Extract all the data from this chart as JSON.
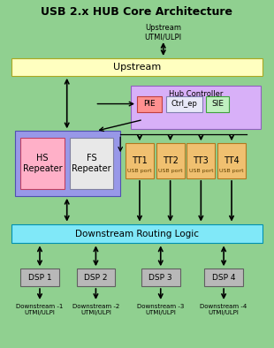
{
  "title": "USB 2.x HUB Core Architecture",
  "bg_color": "#90d090",
  "upstream_box": {
    "label": "Upstream",
    "color": "#ffffc0",
    "edgecolor": "#aaa820"
  },
  "hub_controller": {
    "label": "Hub Controller",
    "color": "#d8b0f8",
    "edgecolor": "#9060c0",
    "sub_boxes": [
      {
        "label": "PIE",
        "color": "#ff9090",
        "edgecolor": "#c04040"
      },
      {
        "label": "Ctrl_ep",
        "color": "#e8e8f8",
        "edgecolor": "#8080b0"
      },
      {
        "label": "SIE",
        "color": "#c0f0c0",
        "edgecolor": "#40a040"
      }
    ]
  },
  "repeater_box": {
    "color": "#9898e8",
    "edgecolor": "#5050b0",
    "sub_boxes": [
      {
        "label": "HS\nRepeater",
        "color": "#ffb0c8",
        "edgecolor": "#c04060"
      },
      {
        "label": "FS\nRepeater",
        "color": "#e8e8e8",
        "edgecolor": "#8080a0"
      }
    ]
  },
  "tt_boxes": [
    {
      "label": "TT1",
      "sublabel": "USB port",
      "color": "#f0c070",
      "edgecolor": "#b07820"
    },
    {
      "label": "TT2",
      "sublabel": "USB port",
      "color": "#f0c070",
      "edgecolor": "#b07820"
    },
    {
      "label": "TT3",
      "sublabel": "USB port",
      "color": "#f0c070",
      "edgecolor": "#b07820"
    },
    {
      "label": "TT4",
      "sublabel": "USB port",
      "color": "#f0c070",
      "edgecolor": "#b07820"
    }
  ],
  "routing_box": {
    "label": "Downstream Routing Logic",
    "color": "#80e8f8",
    "edgecolor": "#0090b0"
  },
  "dsp_boxes": [
    {
      "label": "DSP 1",
      "sublabel": "Downstream -1\nUTMI/ULPI"
    },
    {
      "label": "DSP 2",
      "sublabel": "Downstream -2\nUTMI/ULPI"
    },
    {
      "label": "DSP 3",
      "sublabel": "Downstream -3\nUTMI/ULPI"
    },
    {
      "label": "DSP 4",
      "sublabel": "Downstream -4\nUTMI/ULPI"
    }
  ],
  "dsp_color": "#b8b8b8",
  "dsp_edgecolor": "#606060"
}
